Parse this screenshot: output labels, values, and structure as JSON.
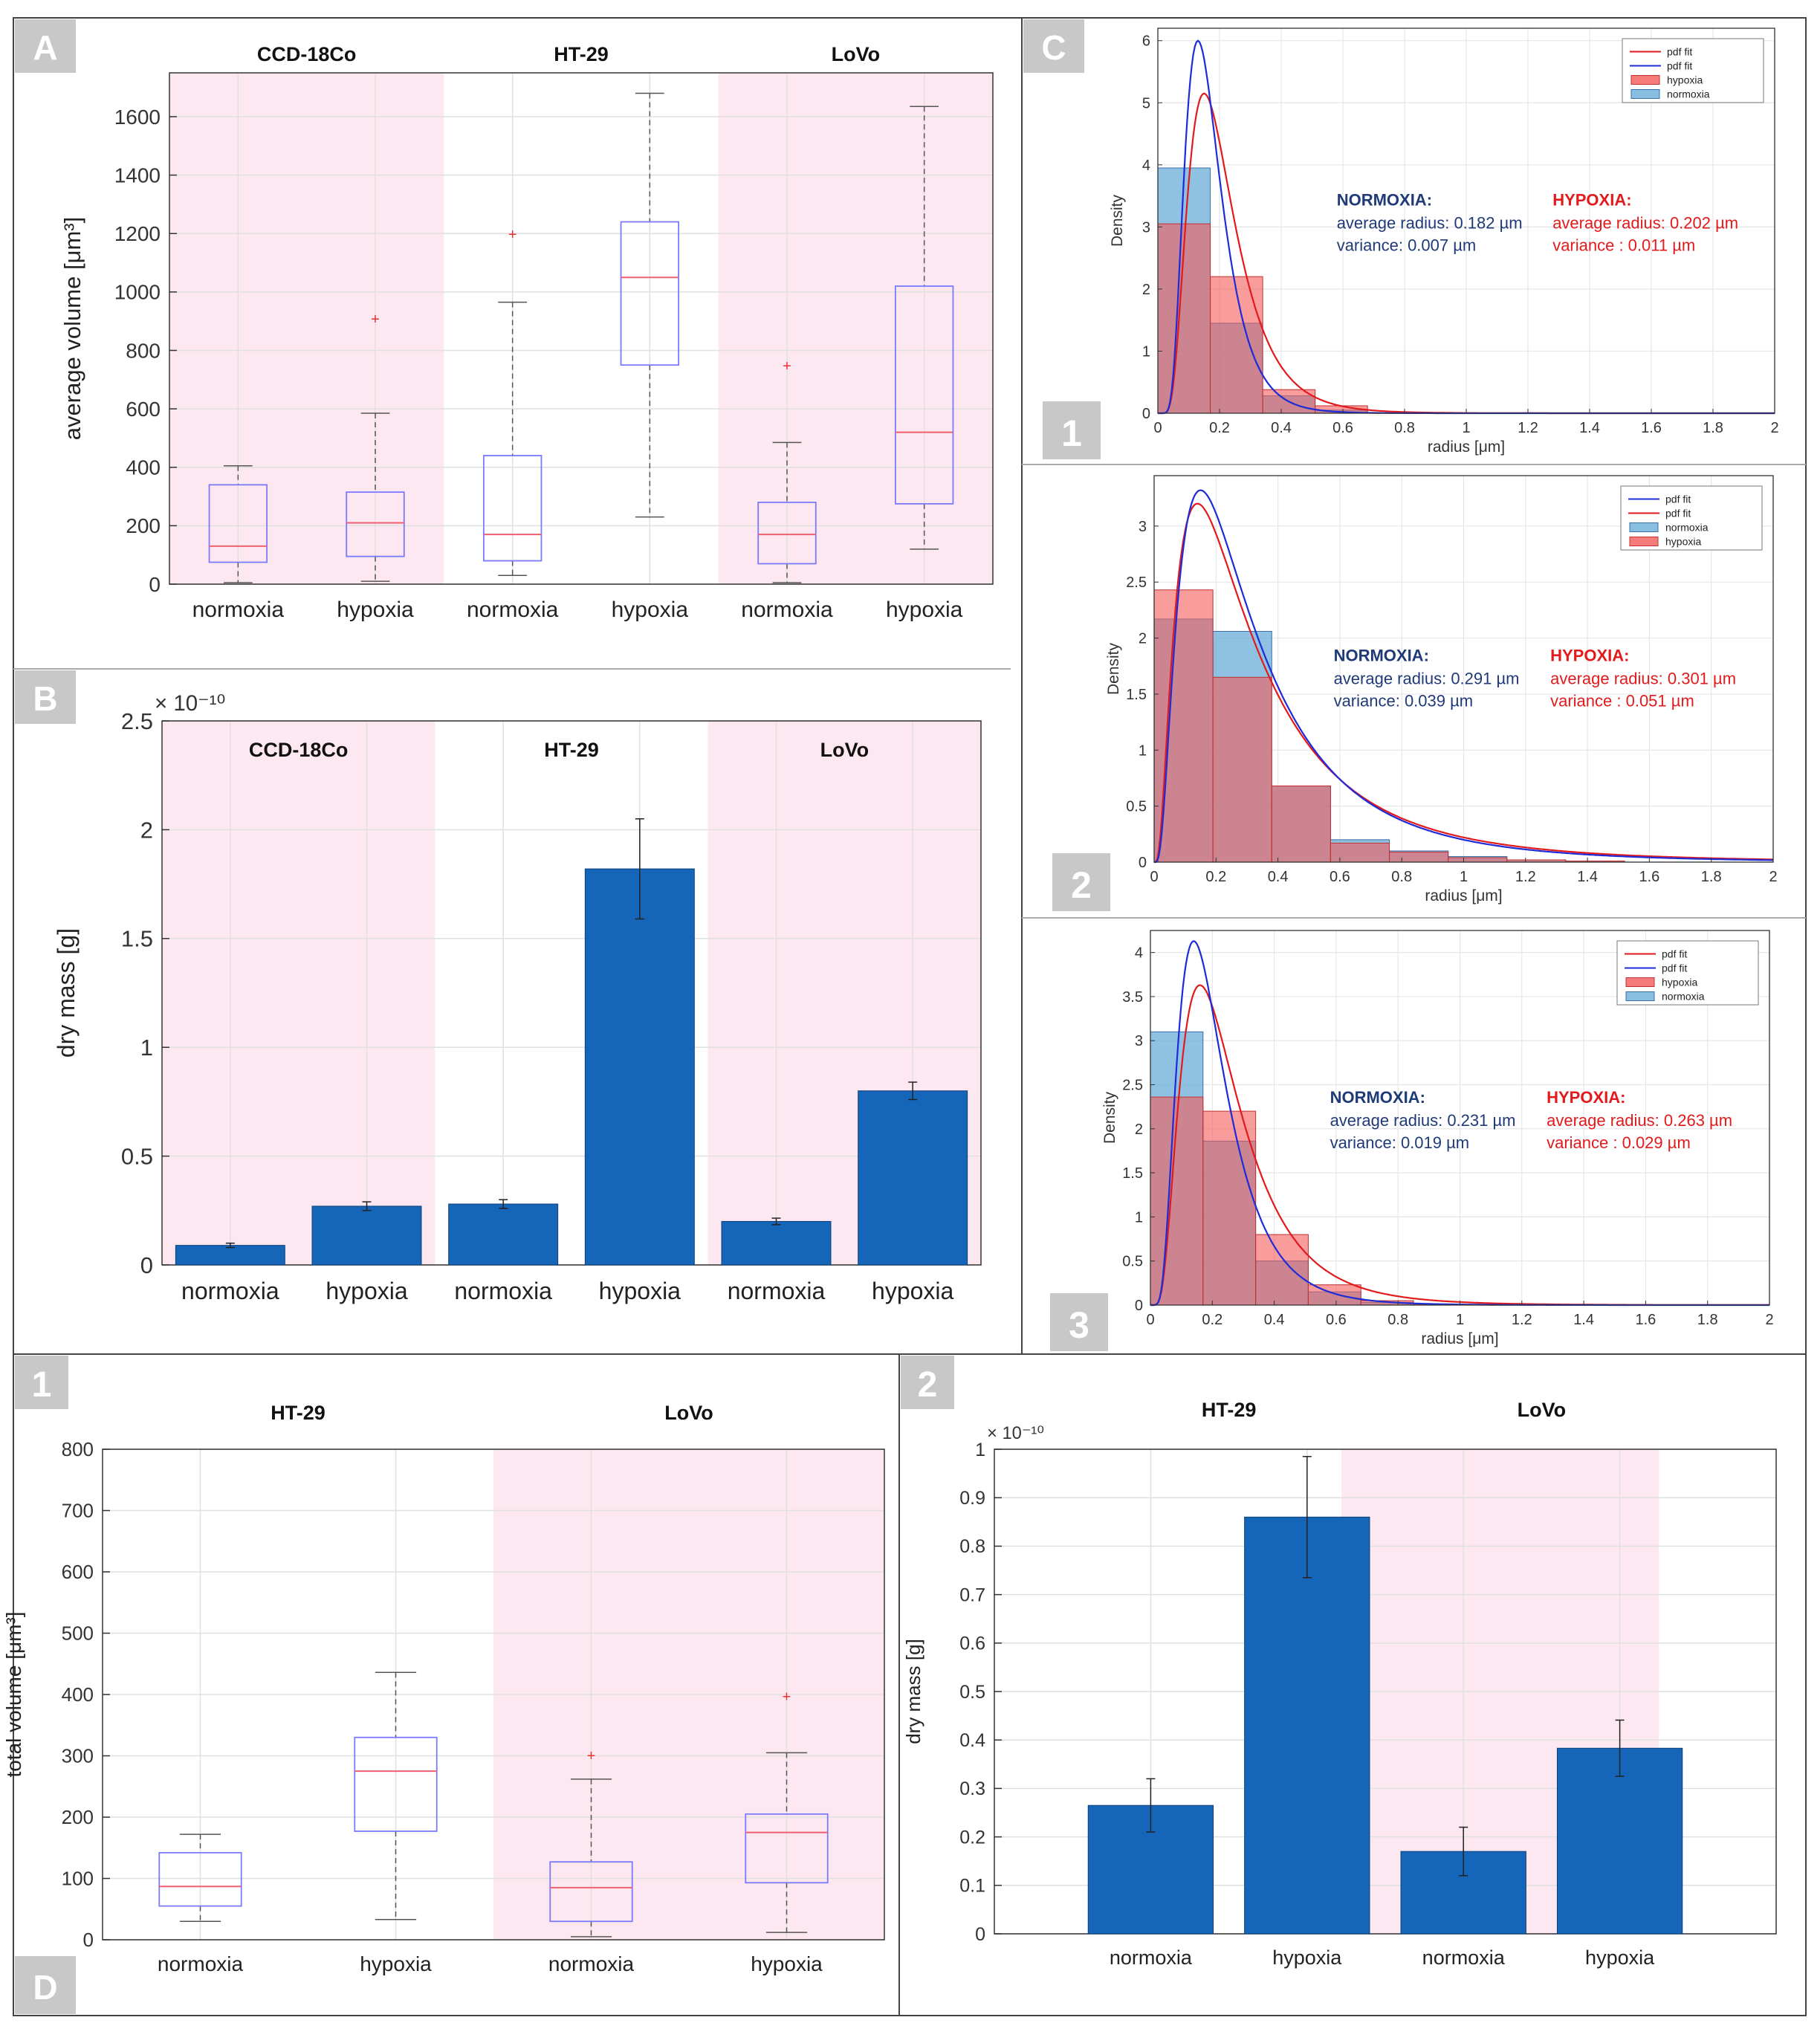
{
  "colors": {
    "bar": "#1565b8",
    "pink": "#fde8f1",
    "box": "#7a7aff",
    "median": "#f06070",
    "outlier": "#e83030",
    "hyp_fill": "#f45a5a",
    "norm_fill": "#6aaed8",
    "red_line": "#e31a1c",
    "blue_line": "#1e2bd8",
    "navy": "#1f3a78",
    "label_bg": "#c8c8c8"
  },
  "panel_labels": {
    "A": "A",
    "B": "B",
    "C": "C",
    "D": "D",
    "C1": "1",
    "C2": "2",
    "C3": "3",
    "D1": "1",
    "D2": "2"
  },
  "chart_data": [
    {
      "id": "A",
      "type": "box",
      "title": "",
      "xlabel": "",
      "ylabel": "average volume [μm³]",
      "ylim": [
        0,
        1750
      ],
      "yticks": [
        0,
        200,
        400,
        600,
        800,
        1000,
        1200,
        1400,
        1600
      ],
      "groups": [
        "CCD-18Co",
        "HT-29",
        "LoVo"
      ],
      "categories": [
        "normoxia",
        "hypoxia",
        "normoxia",
        "hypoxia",
        "normoxia",
        "hypoxia"
      ],
      "boxes": [
        {
          "min": 5,
          "q1": 75,
          "median": 130,
          "q3": 340,
          "max": 405,
          "outliers": []
        },
        {
          "min": 10,
          "q1": 95,
          "median": 210,
          "q3": 315,
          "max": 585,
          "outliers": [
            910
          ]
        },
        {
          "min": 30,
          "q1": 80,
          "median": 170,
          "q3": 440,
          "max": 965,
          "outliers": [
            1200
          ]
        },
        {
          "min": 230,
          "q1": 750,
          "median": 1050,
          "q3": 1240,
          "max": 1680,
          "outliers": []
        },
        {
          "min": 5,
          "q1": 70,
          "median": 170,
          "q3": 280,
          "max": 485,
          "outliers": [
            750
          ]
        },
        {
          "min": 120,
          "q1": 275,
          "median": 520,
          "q3": 1020,
          "max": 1635,
          "outliers": []
        }
      ]
    },
    {
      "id": "B",
      "type": "bar",
      "ylabel": "dry mass [g]",
      "exponent": "× 10⁻¹⁰",
      "ylim": [
        0,
        2.5
      ],
      "yticks": [
        0,
        0.5,
        1,
        1.5,
        2,
        2.5
      ],
      "groups": [
        "CCD-18Co",
        "HT-29",
        "LoVo"
      ],
      "categories": [
        "normoxia",
        "hypoxia",
        "normoxia",
        "hypoxia",
        "normoxia",
        "hypoxia"
      ],
      "values": [
        0.09,
        0.27,
        0.28,
        1.82,
        0.2,
        0.8
      ],
      "errors": [
        0.01,
        0.02,
        0.02,
        0.23,
        0.015,
        0.04
      ]
    },
    {
      "id": "C1",
      "type": "histogram",
      "xlabel": "radius [μm]",
      "ylabel": "Density",
      "xlim": [
        0,
        2
      ],
      "ylim": [
        0,
        6.2
      ],
      "xticks": [
        0,
        0.2,
        0.4,
        0.6,
        0.8,
        1,
        1.2,
        1.4,
        1.6,
        1.8,
        2
      ],
      "yticks": [
        0,
        1,
        2,
        3,
        4,
        5,
        6
      ],
      "bin_edges": [
        0,
        0.17,
        0.34,
        0.51,
        0.68,
        0.85
      ],
      "hypoxia": [
        3.05,
        2.2,
        0.38,
        0.12,
        0.0
      ],
      "normoxia": [
        3.95,
        1.45,
        0.28,
        0.05,
        0.0
      ],
      "fit_hypoxia": {
        "mu": 0.202,
        "sigma": 0.5,
        "mode_x": 0.15,
        "peak": 5.15
      },
      "fit_normoxia": {
        "mu": 0.182,
        "sigma": 0.45,
        "mode_x": 0.13,
        "peak": 6.0
      },
      "legend": [
        "pdf fit",
        "pdf fit",
        "hypoxia",
        "normoxia"
      ],
      "legend_order": [
        "red",
        "blue",
        "hyp",
        "norm"
      ],
      "normoxia_title": "NORMOXIA:",
      "normoxia_radius": "average radius: 0.182 µm",
      "normoxia_variance": "variance: 0.007 µm",
      "hypoxia_title": "HYPOXIA:",
      "hypoxia_radius": "average radius: 0.202 µm",
      "hypoxia_variance": "variance : 0.011 µm"
    },
    {
      "id": "C2",
      "type": "histogram",
      "xlabel": "radius [μm]",
      "ylabel": "Density",
      "xlim": [
        0,
        2
      ],
      "ylim": [
        0,
        3.45
      ],
      "xticks": [
        0,
        0.2,
        0.4,
        0.6,
        0.8,
        1,
        1.2,
        1.4,
        1.6,
        1.8,
        2
      ],
      "yticks": [
        0,
        0.5,
        1,
        1.5,
        2,
        2.5,
        3
      ],
      "bin_edges": [
        0,
        0.19,
        0.38,
        0.57,
        0.76,
        0.95,
        1.14,
        1.33,
        1.52
      ],
      "hypoxia": [
        2.43,
        1.65,
        0.68,
        0.17,
        0.09,
        0.04,
        0.02,
        0.01
      ],
      "normoxia": [
        2.17,
        2.06,
        0.68,
        0.2,
        0.1,
        0.05,
        0.02,
        0.01
      ],
      "fit_hypoxia": {
        "mu": 0.301,
        "sigma": 0.85,
        "mode_x": 0.14,
        "peak": 3.2
      },
      "fit_normoxia": {
        "mu": 0.291,
        "sigma": 0.8,
        "mode_x": 0.15,
        "peak": 3.32
      },
      "legend": [
        "pdf fit",
        "pdf fit",
        "normoxia",
        "hypoxia"
      ],
      "legend_order": [
        "blue",
        "red",
        "norm",
        "hyp"
      ],
      "normoxia_title": "NORMOXIA:",
      "normoxia_radius": "average radius: 0.291 µm",
      "normoxia_variance": "variance: 0.039 µm",
      "hypoxia_title": "HYPOXIA:",
      "hypoxia_radius": "average radius: 0.301 µm",
      "hypoxia_variance": "variance : 0.051 µm"
    },
    {
      "id": "C3",
      "type": "histogram",
      "xlabel": "radius [μm]",
      "ylabel": "Density",
      "xlim": [
        0,
        2
      ],
      "ylim": [
        0,
        4.25
      ],
      "xticks": [
        0,
        0.2,
        0.4,
        0.6,
        0.8,
        1,
        1.2,
        1.4,
        1.6,
        1.8,
        2
      ],
      "yticks": [
        0,
        0.5,
        1,
        1.5,
        2,
        2.5,
        3,
        3.5,
        4
      ],
      "bin_edges": [
        0,
        0.17,
        0.34,
        0.51,
        0.68,
        0.85,
        1.02
      ],
      "hypoxia": [
        2.36,
        2.2,
        0.8,
        0.23,
        0.05,
        0.01
      ],
      "normoxia": [
        3.1,
        1.86,
        0.5,
        0.15,
        0.03,
        0.0
      ],
      "fit_hypoxia": {
        "mu": 0.263,
        "sigma": 0.6,
        "mode_x": 0.16,
        "peak": 3.63
      },
      "fit_normoxia": {
        "mu": 0.231,
        "sigma": 0.55,
        "mode_x": 0.14,
        "peak": 4.13
      },
      "legend": [
        "pdf fit",
        "pdf fit",
        "hypoxia",
        "normoxia"
      ],
      "legend_order": [
        "red",
        "blue",
        "hyp",
        "norm"
      ],
      "normoxia_title": "NORMOXIA:",
      "normoxia_radius": "average radius: 0.231 µm",
      "normoxia_variance": "variance: 0.019 µm",
      "hypoxia_title": "HYPOXIA:",
      "hypoxia_radius": "average radius: 0.263 µm",
      "hypoxia_variance": "variance : 0.029 µm"
    },
    {
      "id": "D1",
      "type": "box",
      "ylabel": "total volume [μm³]",
      "ylim": [
        0,
        800
      ],
      "yticks": [
        0,
        100,
        200,
        300,
        400,
        500,
        600,
        700,
        800
      ],
      "groups": [
        "HT-29",
        "LoVo"
      ],
      "categories": [
        "normoxia",
        "hypoxia",
        "normoxia",
        "hypoxia"
      ],
      "boxes": [
        {
          "min": 30,
          "q1": 55,
          "median": 87,
          "q3": 142,
          "max": 172,
          "outliers": []
        },
        {
          "min": 33,
          "q1": 177,
          "median": 275,
          "q3": 330,
          "max": 436,
          "outliers": []
        },
        {
          "min": 5,
          "q1": 30,
          "median": 85,
          "q3": 127,
          "max": 262,
          "outliers": [
            302
          ]
        },
        {
          "min": 12,
          "q1": 93,
          "median": 175,
          "q3": 205,
          "max": 305,
          "outliers": [
            398
          ]
        }
      ]
    },
    {
      "id": "D2",
      "type": "bar",
      "ylabel": "dry mass [g]",
      "exponent": "× 10⁻¹⁰",
      "ylim": [
        0,
        1
      ],
      "yticks": [
        0,
        0.1,
        0.2,
        0.3,
        0.4,
        0.5,
        0.6,
        0.7,
        0.8,
        0.9,
        1
      ],
      "groups": [
        "HT-29",
        "LoVo"
      ],
      "categories": [
        "normoxia",
        "hypoxia",
        "normoxia",
        "hypoxia"
      ],
      "values": [
        0.265,
        0.86,
        0.17,
        0.383
      ],
      "errors": [
        0.055,
        0.125,
        0.05,
        0.058
      ]
    }
  ]
}
